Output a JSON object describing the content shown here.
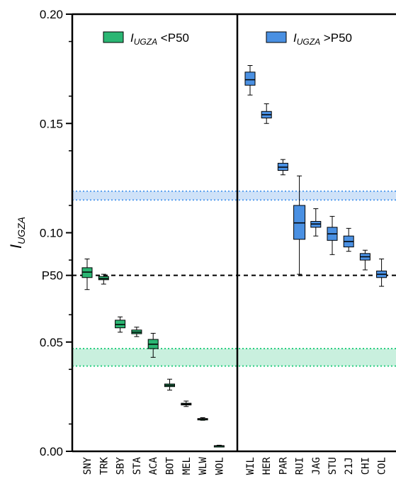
{
  "chart_data": {
    "type": "box",
    "ylabel": {
      "main": "I",
      "sub": "UGZA"
    },
    "ylim": [
      0,
      0.2
    ],
    "yticks": [
      {
        "value": 0.0,
        "label": "0.00"
      },
      {
        "value": 0.05,
        "label": "0.05"
      },
      {
        "value": 0.0805,
        "label": "P50"
      },
      {
        "value": 0.1,
        "label": "0.10"
      },
      {
        "value": 0.15,
        "label": "0.15"
      },
      {
        "value": 0.2,
        "label": "0.20"
      }
    ],
    "p50": 0.0805,
    "colors": {
      "low": "#2bb673",
      "high": "#4a90e2",
      "low_band": "#c9f0de",
      "high_band": "#cfe2f8",
      "low_band_line": "#2bcf82",
      "high_band_line": "#5aa0ee"
    },
    "bands": [
      {
        "group": "high",
        "range": [
          0.115,
          0.119
        ]
      },
      {
        "group": "low",
        "range": [
          0.039,
          0.047
        ]
      }
    ],
    "legend": [
      {
        "group": "low",
        "main": "I",
        "sub": "UGZA",
        "suffix": " <P50"
      },
      {
        "group": "high",
        "main": "I",
        "sub": "UGZA",
        "suffix": " >P50"
      }
    ],
    "series": [
      {
        "name": "SNY",
        "group": "low",
        "min": 0.074,
        "q1": 0.0795,
        "median": 0.082,
        "q3": 0.084,
        "max": 0.088
      },
      {
        "name": "TRK",
        "group": "low",
        "min": 0.0765,
        "q1": 0.0785,
        "median": 0.079,
        "q3": 0.08,
        "max": 0.081
      },
      {
        "name": "SBY",
        "group": "low",
        "min": 0.0545,
        "q1": 0.0565,
        "median": 0.058,
        "q3": 0.06,
        "max": 0.0615
      },
      {
        "name": "STA",
        "group": "low",
        "min": 0.0525,
        "q1": 0.0538,
        "median": 0.0545,
        "q3": 0.0555,
        "max": 0.0568
      },
      {
        "name": "ACA",
        "group": "low",
        "min": 0.043,
        "q1": 0.047,
        "median": 0.049,
        "q3": 0.0512,
        "max": 0.054
      },
      {
        "name": "BOT",
        "group": "low",
        "min": 0.028,
        "q1": 0.0296,
        "median": 0.0302,
        "q3": 0.0308,
        "max": 0.033
      },
      {
        "name": "MEL",
        "group": "low",
        "min": 0.0205,
        "q1": 0.0212,
        "median": 0.0216,
        "q3": 0.022,
        "max": 0.023
      },
      {
        "name": "WLW",
        "group": "low",
        "min": 0.0142,
        "q1": 0.0146,
        "median": 0.0148,
        "q3": 0.015,
        "max": 0.0154
      },
      {
        "name": "WOL",
        "group": "low",
        "min": 0.0022,
        "q1": 0.0024,
        "median": 0.0025,
        "q3": 0.0026,
        "max": 0.0028
      },
      {
        "name": "WIL",
        "group": "high",
        "min": 0.163,
        "q1": 0.1675,
        "median": 0.17,
        "q3": 0.1735,
        "max": 0.1765
      },
      {
        "name": "HER",
        "group": "high",
        "min": 0.15,
        "q1": 0.1525,
        "median": 0.154,
        "q3": 0.1555,
        "max": 0.159
      },
      {
        "name": "PAR",
        "group": "high",
        "min": 0.1265,
        "q1": 0.1285,
        "median": 0.13,
        "q3": 0.1318,
        "max": 0.1335
      },
      {
        "name": "RUI",
        "group": "high",
        "min": 0.081,
        "q1": 0.097,
        "median": 0.1045,
        "q3": 0.1125,
        "max": 0.126
      },
      {
        "name": "JAG",
        "group": "high",
        "min": 0.0985,
        "q1": 0.1025,
        "median": 0.104,
        "q3": 0.1052,
        "max": 0.111
      },
      {
        "name": "STU",
        "group": "high",
        "min": 0.09,
        "q1": 0.0965,
        "median": 0.0995,
        "q3": 0.1025,
        "max": 0.1075
      },
      {
        "name": "21J",
        "group": "high",
        "min": 0.0915,
        "q1": 0.0935,
        "median": 0.096,
        "q3": 0.0985,
        "max": 0.102
      },
      {
        "name": "CHI",
        "group": "high",
        "min": 0.083,
        "q1": 0.0875,
        "median": 0.089,
        "q3": 0.0905,
        "max": 0.092
      },
      {
        "name": "COL",
        "group": "high",
        "min": 0.0755,
        "q1": 0.0795,
        "median": 0.081,
        "q3": 0.0825,
        "max": 0.088
      }
    ]
  }
}
